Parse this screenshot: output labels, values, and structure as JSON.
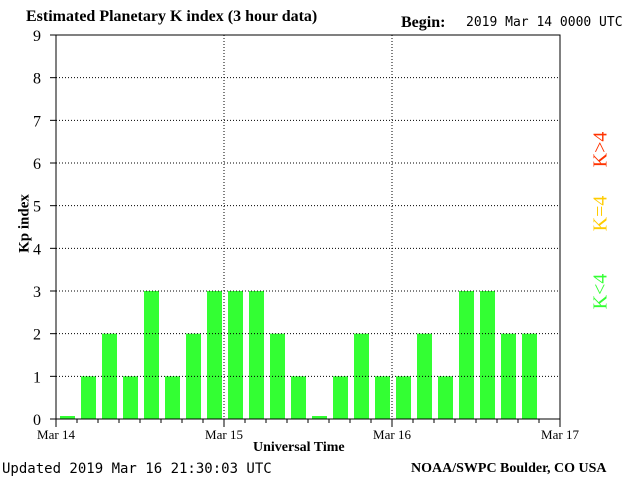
{
  "header": {
    "title": "Estimated Planetary K index (3 hour data)",
    "begin_label": "Begin:",
    "begin_value": "2019 Mar 14 0000 UTC"
  },
  "footer": {
    "updated": "Updated 2019 Mar 16 21:30:03 UTC",
    "source": "NOAA/SWPC Boulder, CO USA"
  },
  "legend": {
    "greater": "K>4",
    "equal": "K=4",
    "less": "K<4"
  },
  "colors": {
    "bar_low": "#33ff33",
    "bar_equal": "#ffcc00",
    "bar_high": "#ff3300",
    "legend_greater": "#ff3300",
    "legend_equal": "#ffcc00",
    "legend_less": "#33ff33"
  },
  "chart_data": {
    "type": "bar",
    "title": "Estimated Planetary K index (3 hour data)",
    "xlabel": "Universal Time",
    "ylabel": "Kp index",
    "ylim": [
      0,
      9
    ],
    "yticks": [
      0,
      1,
      2,
      3,
      4,
      5,
      6,
      7,
      8,
      9
    ],
    "x_tick_labels": [
      "Mar 14",
      "Mar 15",
      "Mar 16",
      "Mar 17"
    ],
    "grid": true,
    "interval_hours": 3,
    "values": [
      0,
      1,
      2,
      1,
      3,
      1,
      2,
      3,
      3,
      3,
      2,
      1,
      0,
      1,
      2,
      1,
      1,
      2,
      1,
      3,
      3,
      2,
      2
    ]
  }
}
